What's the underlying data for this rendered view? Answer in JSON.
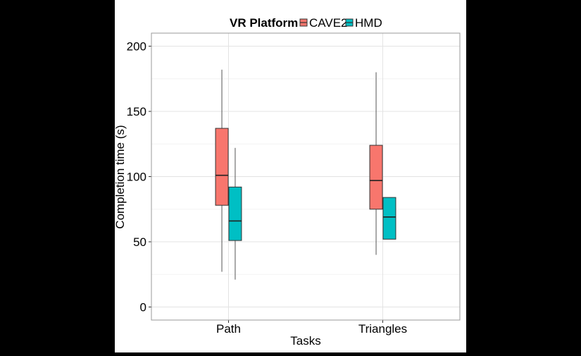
{
  "chart_data": {
    "type": "boxplot",
    "title": "",
    "xlabel": "Tasks",
    "ylabel": "Completion time (s)",
    "ylim": [
      -10,
      210
    ],
    "yticks": [
      0,
      50,
      100,
      150,
      200
    ],
    "categories": [
      "Path",
      "Triangles"
    ],
    "legend": {
      "title": "VR Platform",
      "position": "top",
      "entries": [
        "CAVE2",
        "HMD"
      ]
    },
    "grid": true,
    "series": [
      {
        "name": "CAVE2",
        "color": "#f8766d",
        "boxes": [
          {
            "category": "Path",
            "min": 27,
            "q1": 78,
            "median": 101,
            "q3": 137,
            "max": 182
          },
          {
            "category": "Triangles",
            "min": 40,
            "q1": 75,
            "median": 97,
            "q3": 124,
            "max": 180
          }
        ]
      },
      {
        "name": "HMD",
        "color": "#00bfc4",
        "boxes": [
          {
            "category": "Path",
            "min": 21,
            "q1": 51,
            "median": 66,
            "q3": 92,
            "max": 122
          },
          {
            "category": "Triangles",
            "min": 52,
            "q1": 52,
            "median": 69,
            "q3": 84,
            "max": 84
          }
        ]
      }
    ]
  }
}
